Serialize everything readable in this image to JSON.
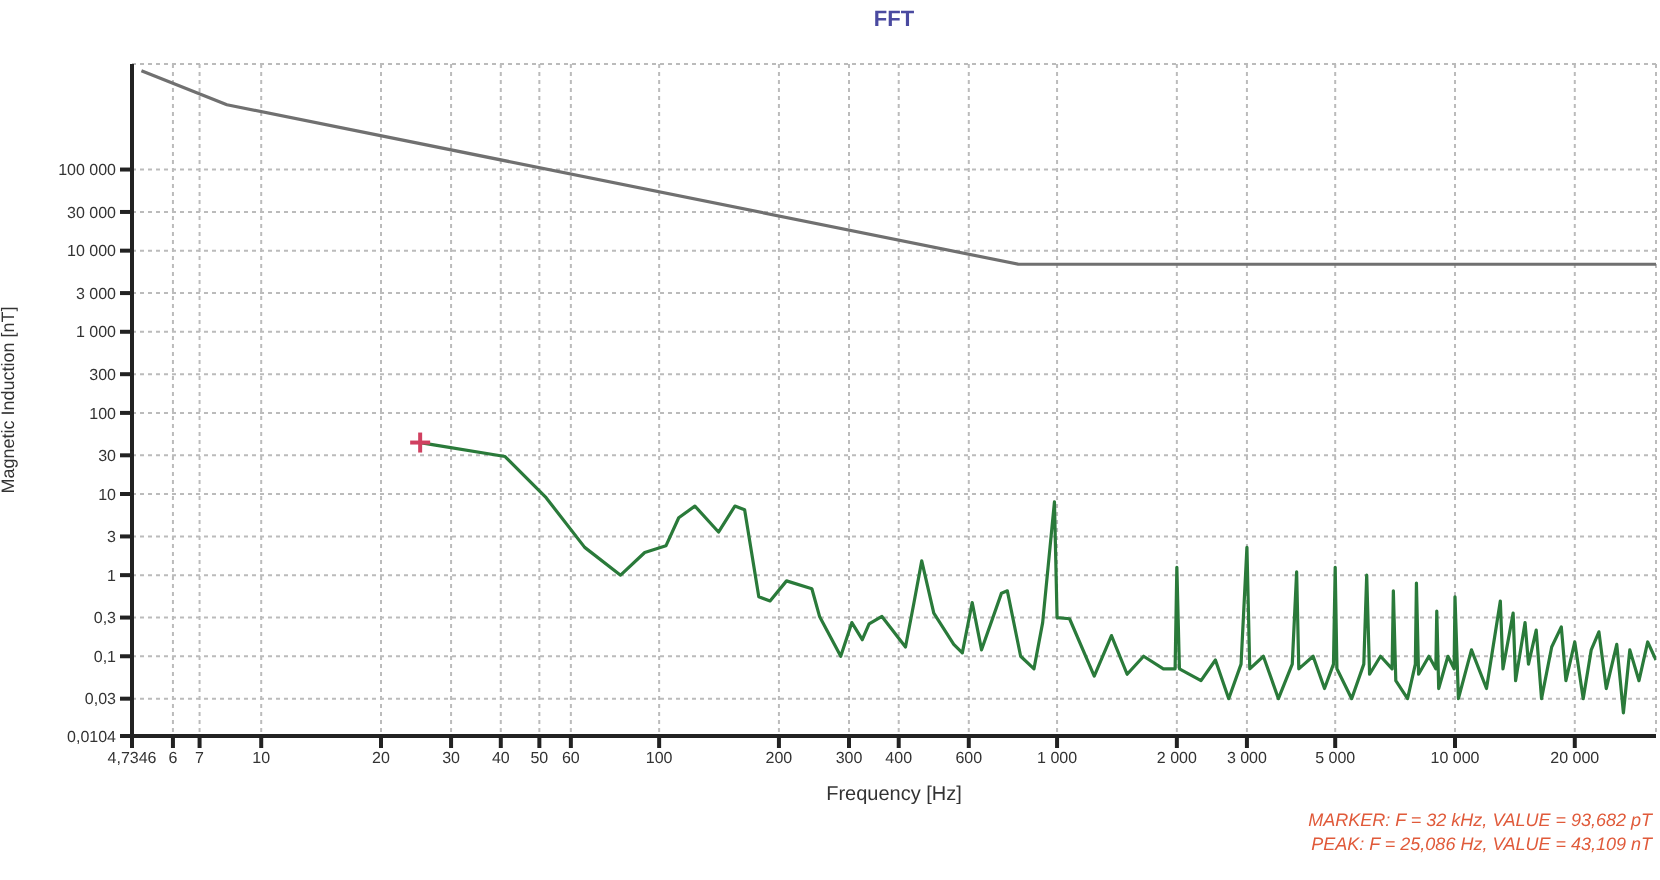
{
  "chart_data": {
    "type": "line",
    "title": "FFT",
    "xlabel": "Frequency [Hz]",
    "ylabel": "Magnetic Induction [nT]",
    "log": "xy",
    "grid": true,
    "marker": "none",
    "line_style": "solid",
    "xlim": [
      4.7346,
      32000
    ],
    "xticks": [
      {
        "value": 4.7346,
        "label": "4,7346"
      },
      6,
      7,
      10,
      20,
      30,
      40,
      50,
      60,
      100,
      200,
      300,
      400,
      600,
      {
        "value": 1000,
        "label": "1 000"
      },
      {
        "value": 2000,
        "label": "2 000"
      },
      {
        "value": 3000,
        "label": "3 000"
      },
      {
        "value": 5000,
        "label": "5 000"
      },
      {
        "value": 10000,
        "label": "10 000"
      },
      {
        "value": 20000,
        "label": "20 000"
      }
    ],
    "ylim": [
      0.0104,
      2000000
    ],
    "yticks": [
      {
        "value": 0.0104,
        "label": "0,0104"
      },
      {
        "value": 0.03,
        "label": "0,03"
      },
      {
        "value": 0.1,
        "label": "0,1"
      },
      {
        "value": 0.3,
        "label": "0,3"
      },
      1,
      3,
      10,
      30,
      100,
      300,
      {
        "value": 1000,
        "label": "1 000"
      },
      {
        "value": 3000,
        "label": "3 000"
      },
      {
        "value": 10000,
        "label": "10 000"
      },
      {
        "value": 30000,
        "label": "30 000"
      },
      {
        "value": 100000,
        "label": "100 000"
      }
    ],
    "series": [
      {
        "color": "#707070",
        "x": [
          5,
          8.2,
          800,
          32000
        ],
        "values": [
          1650000,
          630000,
          6800,
          6800
        ]
      },
      {
        "color": "#2a7a3a",
        "x": [
          25.1,
          27.4,
          41,
          52,
          65,
          80,
          92,
          104,
          112,
          123,
          141,
          155,
          164,
          178,
          190,
          209,
          242,
          253,
          286,
          305,
          324,
          337,
          363,
          416,
          437,
          457,
          490,
          550,
          578,
          612,
          646,
          725,
          750,
          810,
          875,
          920,
          985,
          1000,
          1075,
          1240,
          1370,
          1500,
          1650,
          1850,
          1980,
          2000,
          2030,
          2300,
          2500,
          2700,
          2900,
          3000,
          3050,
          3300,
          3600,
          3900,
          4000,
          4050,
          4400,
          4700,
          4950,
          5000,
          5050,
          5500,
          5900,
          6000,
          6100,
          6500,
          6950,
          7000,
          7100,
          7600,
          7950,
          8000,
          8100,
          8600,
          8950,
          9000,
          9100,
          9600,
          9950,
          10000,
          10200,
          11000,
          12000,
          13000,
          13200,
          14000,
          14200,
          15000,
          15300,
          16000,
          16500,
          17500,
          18500,
          19000,
          20000,
          21000,
          22000,
          23000,
          24000,
          25500,
          26500,
          27500,
          29000,
          30500,
          32000
        ],
        "values": [
          43,
          40,
          29,
          9,
          2.2,
          1.0,
          1.9,
          2.3,
          5.1,
          7.1,
          3.4,
          7.1,
          6.4,
          0.54,
          0.48,
          0.85,
          0.68,
          0.31,
          0.1,
          0.26,
          0.16,
          0.25,
          0.31,
          0.13,
          0.46,
          1.5,
          0.34,
          0.14,
          0.11,
          0.46,
          0.12,
          0.6,
          0.64,
          0.1,
          0.07,
          0.26,
          8,
          0.3,
          0.29,
          0.057,
          0.18,
          0.06,
          0.1,
          0.07,
          0.07,
          1.25,
          0.07,
          0.05,
          0.09,
          0.03,
          0.08,
          2.2,
          0.07,
          0.1,
          0.03,
          0.08,
          1.1,
          0.07,
          0.1,
          0.04,
          0.08,
          1.25,
          0.07,
          0.03,
          0.08,
          1.0,
          0.06,
          0.1,
          0.07,
          0.64,
          0.05,
          0.03,
          0.08,
          0.8,
          0.06,
          0.1,
          0.07,
          0.36,
          0.04,
          0.1,
          0.07,
          0.54,
          0.03,
          0.12,
          0.04,
          0.48,
          0.07,
          0.34,
          0.05,
          0.26,
          0.08,
          0.21,
          0.03,
          0.13,
          0.23,
          0.05,
          0.15,
          0.03,
          0.12,
          0.2,
          0.04,
          0.14,
          0.02,
          0.12,
          0.05,
          0.15,
          0.09
        ]
      },
      {
        "type": "scatter",
        "marker": "cross",
        "color": "#d04060",
        "x": [
          25.086
        ],
        "values": [
          43.109
        ]
      }
    ],
    "annotations": [
      "MARKER: F = 32 kHz, VALUE = 93,682 pT",
      "PEAK: F = 25,086 Hz, VALUE = 43,109 nT"
    ]
  }
}
